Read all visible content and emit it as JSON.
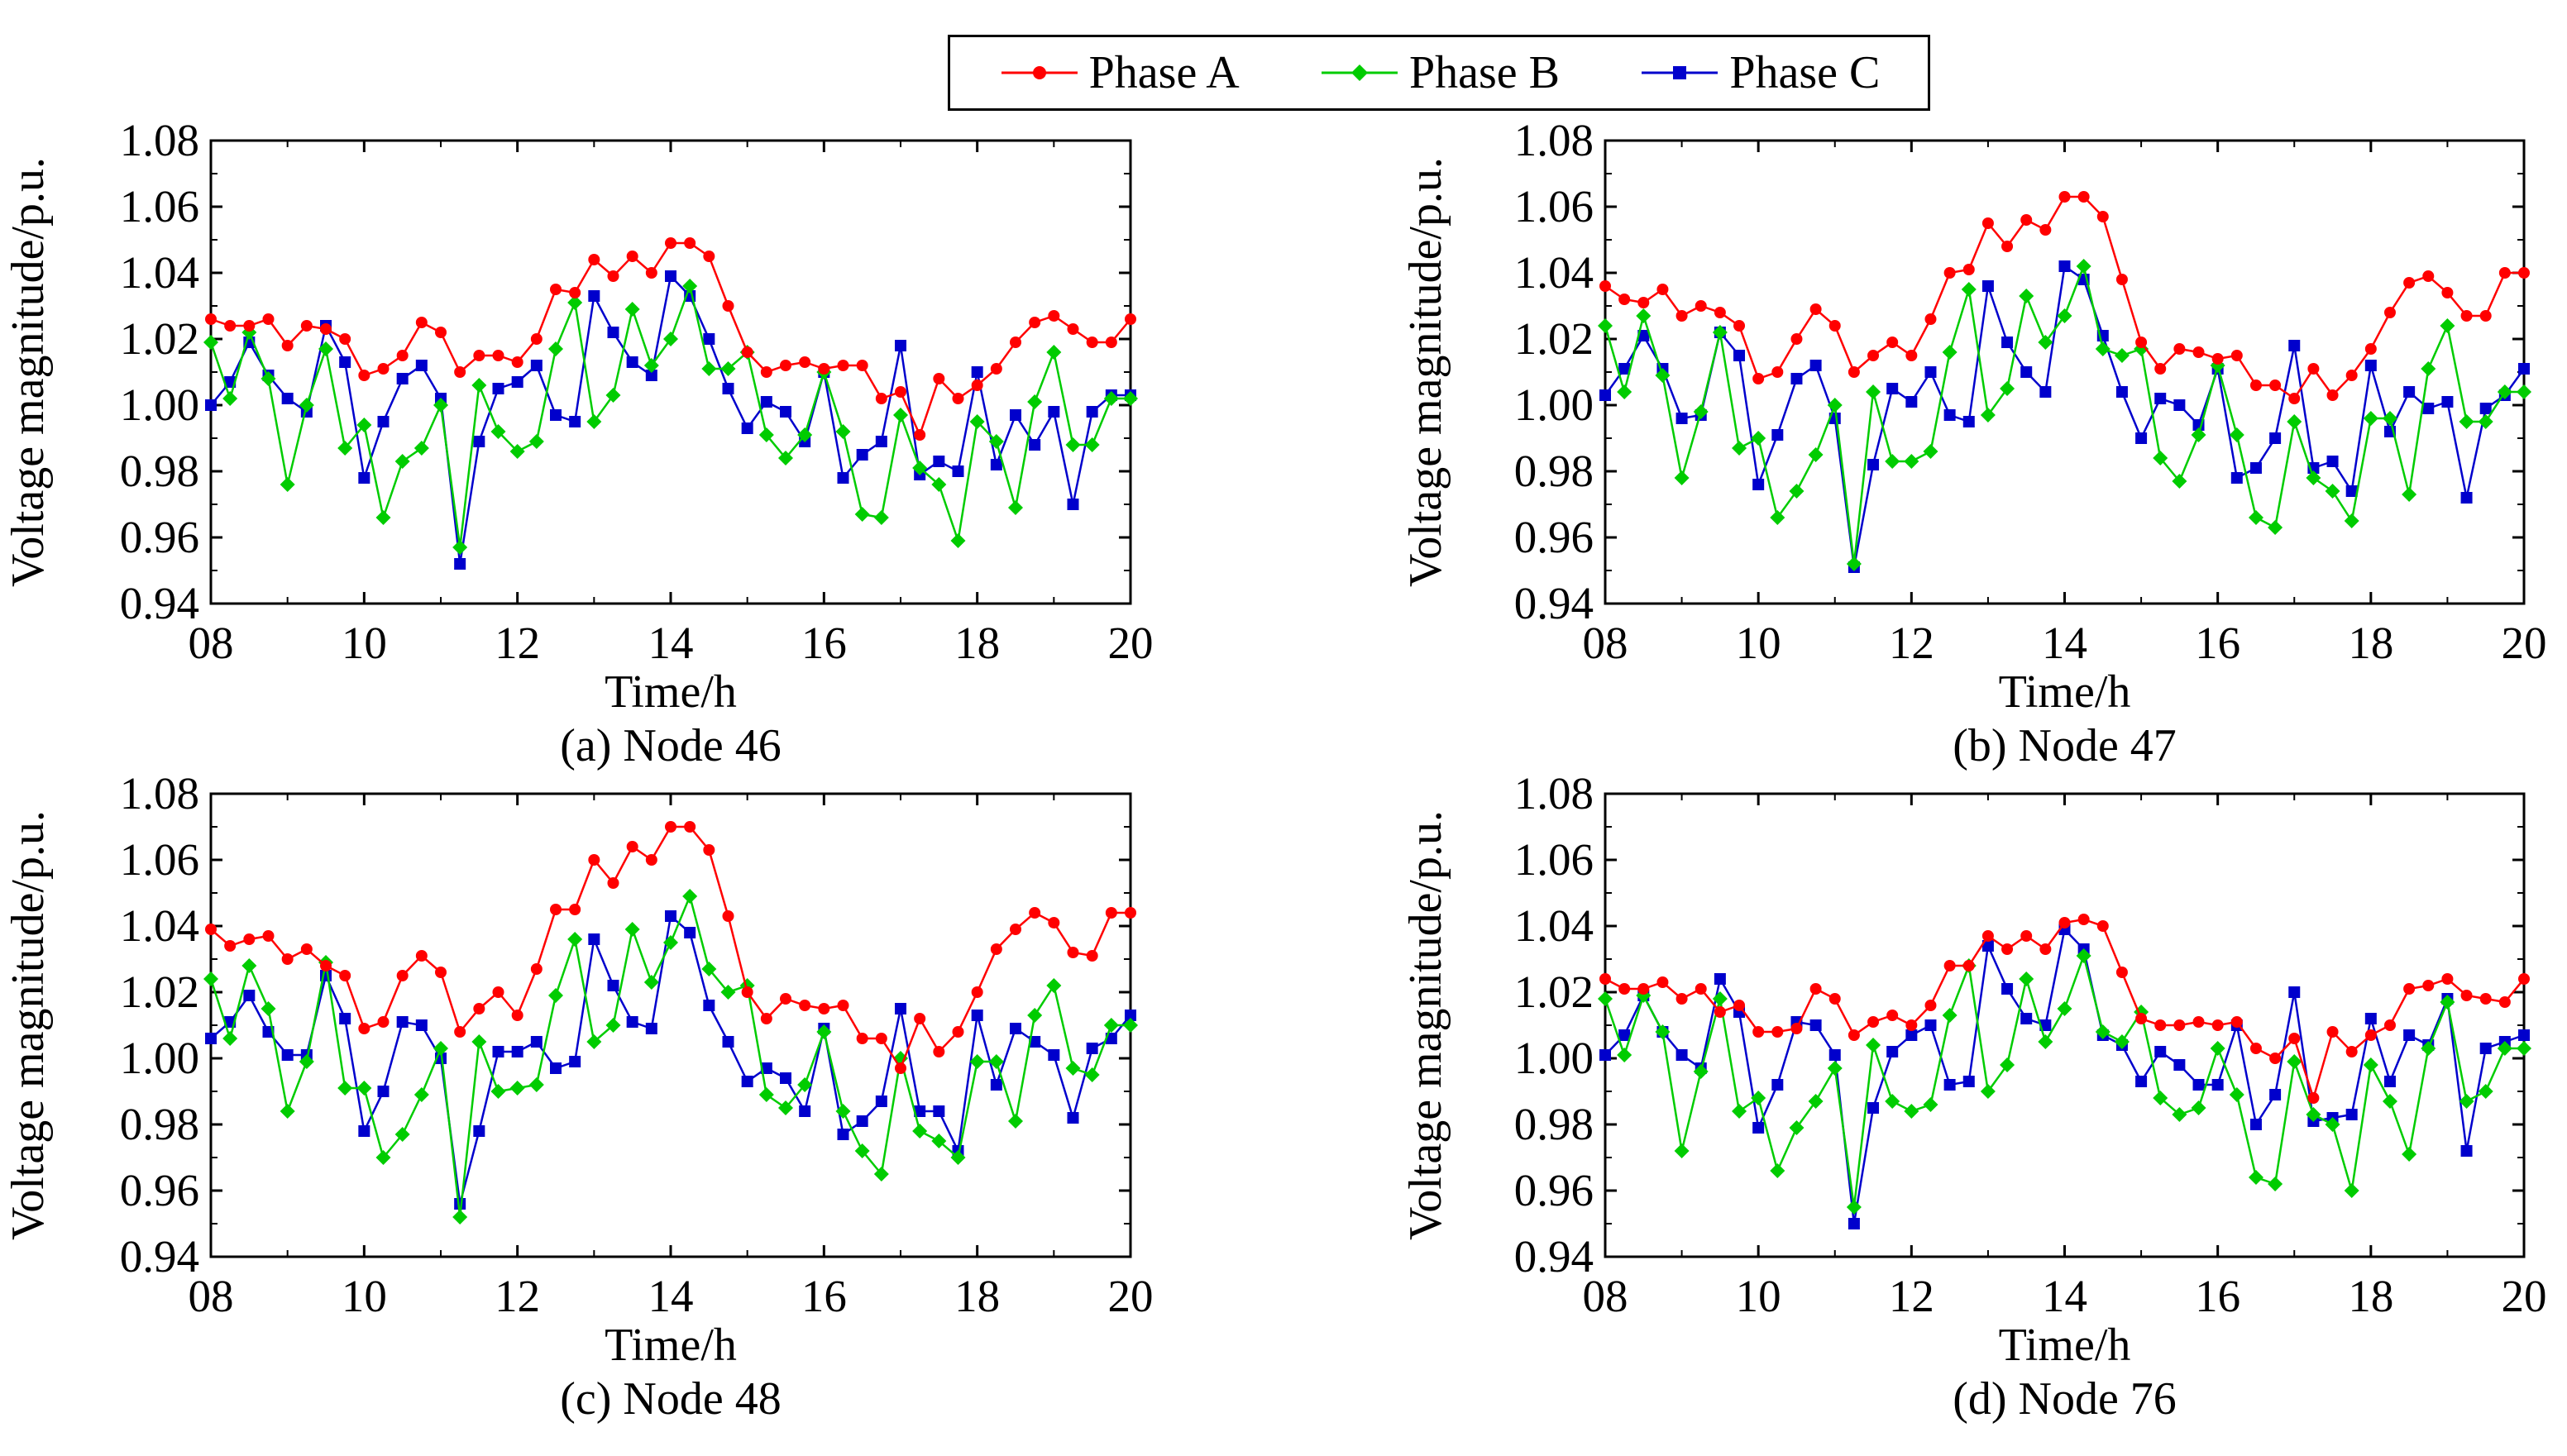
{
  "legend": {
    "entries": [
      {
        "name": "Phase A",
        "color": "#ff0000",
        "marker": "circle"
      },
      {
        "name": "Phase B",
        "color": "#00cc00",
        "marker": "diamond"
      },
      {
        "name": "Phase C",
        "color": "#0000cc",
        "marker": "square"
      }
    ]
  },
  "chart_data": [
    {
      "type": "line",
      "caption": "(a) Node 46",
      "xlabel": "Time/h",
      "ylabel": "Voltage magnitude/p.u.",
      "xlim": [
        8,
        20
      ],
      "ylim": [
        0.94,
        1.08
      ],
      "xticks": [
        "08",
        "10",
        "12",
        "14",
        "16",
        "18",
        "20"
      ],
      "yticks": [
        "0.94",
        "0.96",
        "0.98",
        "1.00",
        "1.02",
        "1.04",
        "1.06",
        "1.08"
      ],
      "x_start": 8,
      "x_step": 0.25,
      "series": [
        {
          "name": "Phase A",
          "values": [
            1.026,
            1.024,
            1.024,
            1.026,
            1.018,
            1.024,
            1.023,
            1.02,
            1.009,
            1.011,
            1.015,
            1.025,
            1.022,
            1.01,
            1.015,
            1.015,
            1.013,
            1.02,
            1.035,
            1.034,
            1.044,
            1.039,
            1.045,
            1.04,
            1.049,
            1.049,
            1.045,
            1.03,
            1.016,
            1.01,
            1.012,
            1.013,
            1.011,
            1.012,
            1.012,
            1.002,
            1.004,
            0.991,
            1.008,
            1.002,
            1.006,
            1.011,
            1.019,
            1.025,
            1.027,
            1.023,
            1.019,
            1.019,
            1.026
          ]
        },
        {
          "name": "Phase B",
          "values": [
            1.019,
            1.002,
            1.022,
            1.008,
            0.976,
            1.0,
            1.017,
            0.987,
            0.994,
            0.966,
            0.983,
            0.987,
            1.0,
            0.957,
            1.006,
            0.992,
            0.986,
            0.989,
            1.017,
            1.031,
            0.995,
            1.003,
            1.029,
            1.012,
            1.02,
            1.036,
            1.011,
            1.011,
            1.016,
            0.991,
            0.984,
            0.991,
            1.01,
            0.992,
            0.967,
            0.966,
            0.997,
            0.981,
            0.976,
            0.959,
            0.995,
            0.989,
            0.969,
            1.001,
            1.016,
            0.988,
            0.988,
            1.002,
            1.002
          ]
        },
        {
          "name": "Phase C",
          "values": [
            1.0,
            1.007,
            1.019,
            1.009,
            1.002,
            0.998,
            1.024,
            1.013,
            0.978,
            0.995,
            1.008,
            1.012,
            1.002,
            0.952,
            0.989,
            1.005,
            1.007,
            1.012,
            0.997,
            0.995,
            1.033,
            1.022,
            1.013,
            1.009,
            1.039,
            1.033,
            1.02,
            1.005,
            0.993,
            1.001,
            0.998,
            0.989,
            1.01,
            0.978,
            0.985,
            0.989,
            1.018,
            0.979,
            0.983,
            0.98,
            1.01,
            0.982,
            0.997,
            0.988,
            0.998,
            0.97,
            0.998,
            1.003,
            1.003
          ]
        }
      ]
    },
    {
      "type": "line",
      "caption": "(b) Node 47",
      "xlabel": "Time/h",
      "ylabel": "Voltage magnitude/p.u.",
      "xlim": [
        8,
        20
      ],
      "ylim": [
        0.94,
        1.08
      ],
      "xticks": [
        "08",
        "10",
        "12",
        "14",
        "16",
        "18",
        "20"
      ],
      "yticks": [
        "0.94",
        "0.96",
        "0.98",
        "1.00",
        "1.02",
        "1.04",
        "1.06",
        "1.08"
      ],
      "x_start": 8,
      "x_step": 0.25,
      "series": [
        {
          "name": "Phase A",
          "values": [
            1.036,
            1.032,
            1.031,
            1.035,
            1.027,
            1.03,
            1.028,
            1.024,
            1.008,
            1.01,
            1.02,
            1.029,
            1.024,
            1.01,
            1.015,
            1.019,
            1.015,
            1.026,
            1.04,
            1.041,
            1.055,
            1.048,
            1.056,
            1.053,
            1.063,
            1.063,
            1.057,
            1.038,
            1.019,
            1.011,
            1.017,
            1.016,
            1.014,
            1.015,
            1.006,
            1.006,
            1.002,
            1.011,
            1.003,
            1.009,
            1.017,
            1.028,
            1.037,
            1.039,
            1.034,
            1.027,
            1.027,
            1.04,
            1.04
          ]
        },
        {
          "name": "Phase B",
          "values": [
            1.024,
            1.004,
            1.027,
            1.009,
            0.978,
            0.998,
            1.022,
            0.987,
            0.99,
            0.966,
            0.974,
            0.985,
            1.0,
            0.952,
            1.004,
            0.983,
            0.983,
            0.986,
            1.016,
            1.035,
            0.997,
            1.005,
            1.033,
            1.019,
            1.027,
            1.042,
            1.017,
            1.015,
            1.017,
            0.984,
            0.977,
            0.991,
            1.012,
            0.991,
            0.966,
            0.963,
            0.995,
            0.978,
            0.974,
            0.965,
            0.996,
            0.996,
            0.973,
            1.011,
            1.024,
            0.995,
            0.995,
            1.004,
            1.004
          ]
        },
        {
          "name": "Phase C",
          "values": [
            1.003,
            1.011,
            1.021,
            1.011,
            0.996,
            0.997,
            1.022,
            1.015,
            0.976,
            0.991,
            1.008,
            1.012,
            0.996,
            0.951,
            0.982,
            1.005,
            1.001,
            1.01,
            0.997,
            0.995,
            1.036,
            1.019,
            1.01,
            1.004,
            1.042,
            1.038,
            1.021,
            1.004,
            0.99,
            1.002,
            1.0,
            0.994,
            1.011,
            0.978,
            0.981,
            0.99,
            1.018,
            0.981,
            0.983,
            0.974,
            1.012,
            0.992,
            1.004,
            0.999,
            1.001,
            0.972,
            0.999,
            1.003,
            1.011
          ]
        }
      ]
    },
    {
      "type": "line",
      "caption": "(c) Node 48",
      "xlabel": "Time/h",
      "ylabel": "Voltage magnitude/p.u.",
      "xlim": [
        8,
        20
      ],
      "ylim": [
        0.94,
        1.08
      ],
      "xticks": [
        "08",
        "10",
        "12",
        "14",
        "16",
        "18",
        "20"
      ],
      "yticks": [
        "0.94",
        "0.96",
        "0.98",
        "1.00",
        "1.02",
        "1.04",
        "1.06",
        "1.08"
      ],
      "x_start": 8,
      "x_step": 0.25,
      "series": [
        {
          "name": "Phase A",
          "values": [
            1.039,
            1.034,
            1.036,
            1.037,
            1.03,
            1.033,
            1.028,
            1.025,
            1.009,
            1.011,
            1.025,
            1.031,
            1.026,
            1.008,
            1.015,
            1.02,
            1.013,
            1.027,
            1.045,
            1.045,
            1.06,
            1.053,
            1.064,
            1.06,
            1.07,
            1.07,
            1.063,
            1.043,
            1.02,
            1.012,
            1.018,
            1.016,
            1.015,
            1.016,
            1.006,
            1.006,
            0.997,
            1.012,
            1.002,
            1.008,
            1.02,
            1.033,
            1.039,
            1.044,
            1.041,
            1.032,
            1.031,
            1.044,
            1.044
          ]
        },
        {
          "name": "Phase B",
          "values": [
            1.024,
            1.006,
            1.028,
            1.015,
            0.984,
            0.999,
            1.029,
            0.991,
            0.991,
            0.97,
            0.977,
            0.989,
            1.003,
            0.952,
            1.005,
            0.99,
            0.991,
            0.992,
            1.019,
            1.036,
            1.005,
            1.01,
            1.039,
            1.023,
            1.035,
            1.049,
            1.027,
            1.02,
            1.022,
            0.989,
            0.985,
            0.992,
            1.008,
            0.984,
            0.972,
            0.965,
            1.0,
            0.978,
            0.975,
            0.97,
            0.999,
            0.999,
            0.981,
            1.013,
            1.022,
            0.997,
            0.995,
            1.01,
            1.01
          ]
        },
        {
          "name": "Phase C",
          "values": [
            1.006,
            1.011,
            1.019,
            1.008,
            1.001,
            1.001,
            1.025,
            1.012,
            0.978,
            0.99,
            1.011,
            1.01,
            1.0,
            0.956,
            0.978,
            1.002,
            1.002,
            1.005,
            0.997,
            0.999,
            1.036,
            1.022,
            1.011,
            1.009,
            1.043,
            1.038,
            1.016,
            1.005,
            0.993,
            0.997,
            0.994,
            0.984,
            1.009,
            0.977,
            0.981,
            0.987,
            1.015,
            0.984,
            0.984,
            0.972,
            1.013,
            0.992,
            1.009,
            1.005,
            1.001,
            0.982,
            1.003,
            1.006,
            1.013
          ]
        }
      ]
    },
    {
      "type": "line",
      "caption": "(d) Node 76",
      "xlabel": "Time/h",
      "ylabel": "Voltage magnitude/p.u.",
      "xlim": [
        8,
        20
      ],
      "ylim": [
        0.94,
        1.08
      ],
      "xticks": [
        "08",
        "10",
        "12",
        "14",
        "16",
        "18",
        "20"
      ],
      "yticks": [
        "0.94",
        "0.96",
        "0.98",
        "1.00",
        "1.02",
        "1.04",
        "1.06",
        "1.08"
      ],
      "x_start": 8,
      "x_step": 0.25,
      "series": [
        {
          "name": "Phase A",
          "values": [
            1.024,
            1.021,
            1.021,
            1.023,
            1.018,
            1.021,
            1.014,
            1.016,
            1.008,
            1.008,
            1.009,
            1.021,
            1.018,
            1.007,
            1.011,
            1.013,
            1.01,
            1.016,
            1.028,
            1.028,
            1.037,
            1.033,
            1.037,
            1.033,
            1.041,
            1.042,
            1.04,
            1.026,
            1.012,
            1.01,
            1.01,
            1.011,
            1.01,
            1.011,
            1.003,
            1.0,
            1.006,
            0.988,
            1.008,
            1.002,
            1.007,
            1.01,
            1.021,
            1.022,
            1.024,
            1.019,
            1.018,
            1.017,
            1.024
          ]
        },
        {
          "name": "Phase B",
          "values": [
            1.018,
            1.001,
            1.019,
            1.008,
            0.972,
            0.996,
            1.018,
            0.984,
            0.988,
            0.966,
            0.979,
            0.987,
            0.997,
            0.955,
            1.004,
            0.987,
            0.984,
            0.986,
            1.013,
            1.028,
            0.99,
            0.998,
            1.024,
            1.005,
            1.015,
            1.031,
            1.008,
            1.005,
            1.014,
            0.988,
            0.983,
            0.985,
            1.003,
            0.989,
            0.964,
            0.962,
            0.999,
            0.983,
            0.98,
            0.96,
            0.998,
            0.987,
            0.971,
            1.003,
            1.017,
            0.987,
            0.99,
            1.003,
            1.003
          ]
        },
        {
          "name": "Phase C",
          "values": [
            1.001,
            1.007,
            1.019,
            1.008,
            1.001,
            0.997,
            1.024,
            1.014,
            0.979,
            0.992,
            1.011,
            1.01,
            1.001,
            0.95,
            0.985,
            1.002,
            1.007,
            1.01,
            0.992,
            0.993,
            1.034,
            1.021,
            1.012,
            1.01,
            1.039,
            1.033,
            1.007,
            1.004,
            0.993,
            1.002,
            0.998,
            0.992,
            0.992,
            1.01,
            0.98,
            0.989,
            1.02,
            0.981,
            0.982,
            0.983,
            1.012,
            0.993,
            1.007,
            1.004,
            1.018,
            0.972,
            1.003,
            1.005,
            1.007
          ]
        }
      ]
    }
  ]
}
